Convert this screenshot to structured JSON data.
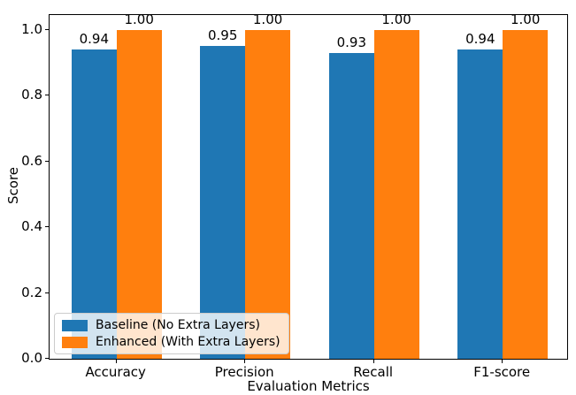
{
  "chart_data": {
    "type": "bar",
    "title": "",
    "xlabel": "Evaluation Metrics",
    "ylabel": "Score",
    "categories": [
      "Accuracy",
      "Precision",
      "Recall",
      "F1-score"
    ],
    "series": [
      {
        "name": "Baseline (No Extra Layers)",
        "color": "#1f77b4",
        "values": [
          0.94,
          0.95,
          0.93,
          0.94
        ],
        "bar_labels": [
          "0.94",
          "0.95",
          "0.93",
          "0.94"
        ]
      },
      {
        "name": "Enhanced (With Extra Layers)",
        "color": "#ff7f0e",
        "values": [
          1.0,
          1.0,
          1.0,
          1.0
        ],
        "bar_labels": [
          "1.00",
          "1.00",
          "1.00",
          "1.00"
        ]
      }
    ],
    "bar_width_units": 0.35,
    "ylim": [
      0.0,
      1.05
    ],
    "yticks": [
      0.0,
      0.2,
      0.4,
      0.6,
      0.8,
      1.0
    ],
    "ytick_labels": [
      "0.0",
      "0.2",
      "0.4",
      "0.6",
      "0.8",
      "1.0"
    ],
    "grid": false,
    "legend_position": "lower left"
  },
  "colors": {
    "axis": "#000000",
    "background": "#ffffff",
    "legend_border": "#cccccc"
  }
}
